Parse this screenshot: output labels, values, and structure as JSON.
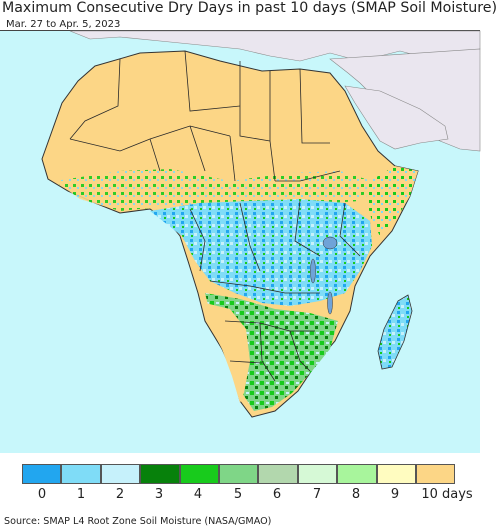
{
  "title": "Maximum Consecutive Dry Days in past 10 days (SMAP Soil Moisture)",
  "subtitle": "Mar. 27 to Apr. 5, 2023",
  "source": "Source: SMAP L4 Root Zone Soil Moisture (NASA/GMAO)",
  "colors": {
    "ocean": "#c8f7fb",
    "nodata_land": "#eae6ef",
    "border": "#2a2a2a"
  },
  "legend": {
    "colors": [
      "#22a6ef",
      "#7fdcf7",
      "#c6f1fb",
      "#07810b",
      "#18cb1c",
      "#7fd687",
      "#b2d7ad",
      "#d6f9d6",
      "#a8f59c",
      "#fffcc0",
      "#fcd686"
    ],
    "labels": [
      "0",
      "1",
      "2",
      "3",
      "4",
      "5",
      "6",
      "7",
      "8",
      "9",
      "10 days"
    ]
  }
}
